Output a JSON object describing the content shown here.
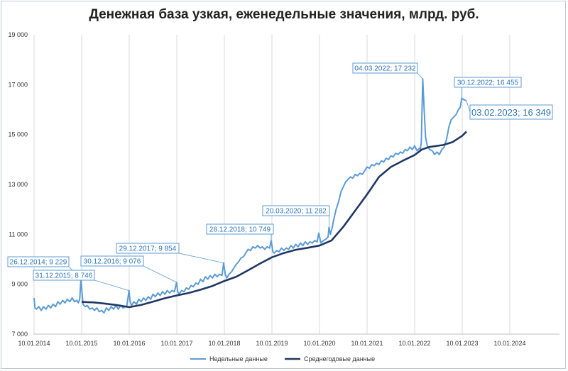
{
  "chart_data": {
    "type": "line",
    "title": "Денежная база узкая, еженедельные значения, млрд. руб.",
    "xlabel": "",
    "ylabel": "",
    "xlim": [
      2014.0,
      2025.0
    ],
    "ylim": [
      7000,
      19000
    ],
    "y_ticks": [
      "7 000",
      "9 000",
      "11 000",
      "13 000",
      "15 000",
      "17 000",
      "19 000"
    ],
    "y_tick_values": [
      7000,
      9000,
      11000,
      13000,
      15000,
      17000,
      19000
    ],
    "x_ticks": [
      "10.01.2014",
      "10.01.2015",
      "10.01.2016",
      "10.01.2017",
      "10.01.2018",
      "10.01.2019",
      "10.01.2020",
      "10.01.2021",
      "10.01.2022",
      "10.01.2023",
      "10.01.2024"
    ],
    "x_tick_values": [
      2014.0,
      2015.0,
      2016.0,
      2017.0,
      2018.0,
      2019.0,
      2020.0,
      2021.0,
      2022.0,
      2023.0,
      2024.0
    ],
    "grid": "vertical",
    "legend": "bottom",
    "series": [
      {
        "name": "Недельные данные",
        "color": "#5b9bd5",
        "points": [
          [
            2014.0,
            8450
          ],
          [
            2014.02,
            8050
          ],
          [
            2014.05,
            8000
          ],
          [
            2014.1,
            8100
          ],
          [
            2014.15,
            7950
          ],
          [
            2014.2,
            8100
          ],
          [
            2014.25,
            8000
          ],
          [
            2014.3,
            8150
          ],
          [
            2014.35,
            8050
          ],
          [
            2014.4,
            8200
          ],
          [
            2014.45,
            8100
          ],
          [
            2014.5,
            8300
          ],
          [
            2014.55,
            8200
          ],
          [
            2014.6,
            8350
          ],
          [
            2014.65,
            8250
          ],
          [
            2014.7,
            8400
          ],
          [
            2014.75,
            8300
          ],
          [
            2014.8,
            8450
          ],
          [
            2014.85,
            8300
          ],
          [
            2014.9,
            8350
          ],
          [
            2014.93,
            8250
          ],
          [
            2014.96,
            8400
          ],
          [
            2014.985,
            9229
          ],
          [
            2015.01,
            8600
          ],
          [
            2015.03,
            8200
          ],
          [
            2015.07,
            8100
          ],
          [
            2015.12,
            8150
          ],
          [
            2015.17,
            8000
          ],
          [
            2015.22,
            8050
          ],
          [
            2015.27,
            7950
          ],
          [
            2015.32,
            8050
          ],
          [
            2015.37,
            7900
          ],
          [
            2015.42,
            7950
          ],
          [
            2015.47,
            7850
          ],
          [
            2015.52,
            8050
          ],
          [
            2015.57,
            7950
          ],
          [
            2015.62,
            8100
          ],
          [
            2015.67,
            8000
          ],
          [
            2015.72,
            8150
          ],
          [
            2015.77,
            8000
          ],
          [
            2015.82,
            8150
          ],
          [
            2015.87,
            8050
          ],
          [
            2015.92,
            8100
          ],
          [
            2015.95,
            8150
          ],
          [
            2015.995,
            8746
          ],
          [
            2016.02,
            8300
          ],
          [
            2016.05,
            8150
          ],
          [
            2016.1,
            8300
          ],
          [
            2016.15,
            8200
          ],
          [
            2016.2,
            8400
          ],
          [
            2016.25,
            8300
          ],
          [
            2016.3,
            8450
          ],
          [
            2016.35,
            8350
          ],
          [
            2016.4,
            8500
          ],
          [
            2016.45,
            8400
          ],
          [
            2016.5,
            8600
          ],
          [
            2016.55,
            8500
          ],
          [
            2016.6,
            8650
          ],
          [
            2016.65,
            8550
          ],
          [
            2016.7,
            8700
          ],
          [
            2016.75,
            8600
          ],
          [
            2016.8,
            8750
          ],
          [
            2016.85,
            8650
          ],
          [
            2016.9,
            8750
          ],
          [
            2016.95,
            8700
          ],
          [
            2016.995,
            9076
          ],
          [
            2017.02,
            8700
          ],
          [
            2017.05,
            8600
          ],
          [
            2017.1,
            8750
          ],
          [
            2017.15,
            8700
          ],
          [
            2017.2,
            8850
          ],
          [
            2017.25,
            8800
          ],
          [
            2017.3,
            8950
          ],
          [
            2017.35,
            8900
          ],
          [
            2017.4,
            9050
          ],
          [
            2017.45,
            9000
          ],
          [
            2017.5,
            9200
          ],
          [
            2017.55,
            9100
          ],
          [
            2017.6,
            9300
          ],
          [
            2017.65,
            9200
          ],
          [
            2017.7,
            9350
          ],
          [
            2017.75,
            9250
          ],
          [
            2017.8,
            9400
          ],
          [
            2017.85,
            9300
          ],
          [
            2017.9,
            9400
          ],
          [
            2017.95,
            9350
          ],
          [
            2017.985,
            9854
          ],
          [
            2018.02,
            9400
          ],
          [
            2018.05,
            9250
          ],
          [
            2018.1,
            9400
          ],
          [
            2018.15,
            9500
          ],
          [
            2018.2,
            9650
          ],
          [
            2018.25,
            9800
          ],
          [
            2018.3,
            9900
          ],
          [
            2018.35,
            10050
          ],
          [
            2018.4,
            10100
          ],
          [
            2018.45,
            10250
          ],
          [
            2018.5,
            10400
          ],
          [
            2018.55,
            10350
          ],
          [
            2018.6,
            10500
          ],
          [
            2018.65,
            10450
          ],
          [
            2018.7,
            10550
          ],
          [
            2018.75,
            10450
          ],
          [
            2018.8,
            10500
          ],
          [
            2018.85,
            10400
          ],
          [
            2018.9,
            10500
          ],
          [
            2018.95,
            10450
          ],
          [
            2018.985,
            10749
          ],
          [
            2019.02,
            10300
          ],
          [
            2019.05,
            10250
          ],
          [
            2019.1,
            10350
          ],
          [
            2019.15,
            10300
          ],
          [
            2019.2,
            10450
          ],
          [
            2019.25,
            10350
          ],
          [
            2019.3,
            10450
          ],
          [
            2019.35,
            10400
          ],
          [
            2019.4,
            10550
          ],
          [
            2019.45,
            10450
          ],
          [
            2019.5,
            10600
          ],
          [
            2019.55,
            10500
          ],
          [
            2019.6,
            10650
          ],
          [
            2019.65,
            10550
          ],
          [
            2019.7,
            10700
          ],
          [
            2019.75,
            10600
          ],
          [
            2019.8,
            10700
          ],
          [
            2019.85,
            10650
          ],
          [
            2019.9,
            10750
          ],
          [
            2019.95,
            10700
          ],
          [
            2019.985,
            11050
          ],
          [
            2020.03,
            10650
          ],
          [
            2020.08,
            10750
          ],
          [
            2020.13,
            10800
          ],
          [
            2020.18,
            10900
          ],
          [
            2020.2,
            11282
          ],
          [
            2020.23,
            11000
          ],
          [
            2020.27,
            11300
          ],
          [
            2020.3,
            11600
          ],
          [
            2020.35,
            12000
          ],
          [
            2020.4,
            12300
          ],
          [
            2020.45,
            12700
          ],
          [
            2020.5,
            12900
          ],
          [
            2020.55,
            13100
          ],
          [
            2020.6,
            13200
          ],
          [
            2020.65,
            13300
          ],
          [
            2020.7,
            13250
          ],
          [
            2020.75,
            13400
          ],
          [
            2020.8,
            13350
          ],
          [
            2020.85,
            13450
          ],
          [
            2020.9,
            13400
          ],
          [
            2020.95,
            13550
          ],
          [
            2021.0,
            13700
          ],
          [
            2021.05,
            13650
          ],
          [
            2021.1,
            13800
          ],
          [
            2021.15,
            13750
          ],
          [
            2021.2,
            13850
          ],
          [
            2021.25,
            13800
          ],
          [
            2021.3,
            13950
          ],
          [
            2021.35,
            13900
          ],
          [
            2021.4,
            14050
          ],
          [
            2021.45,
            14000
          ],
          [
            2021.5,
            14150
          ],
          [
            2021.55,
            14100
          ],
          [
            2021.6,
            14250
          ],
          [
            2021.65,
            14200
          ],
          [
            2021.7,
            14300
          ],
          [
            2021.75,
            14250
          ],
          [
            2021.8,
            14400
          ],
          [
            2021.85,
            14350
          ],
          [
            2021.9,
            14500
          ],
          [
            2021.95,
            14400
          ],
          [
            2022.0,
            14550
          ],
          [
            2022.05,
            14350
          ],
          [
            2022.1,
            14450
          ],
          [
            2022.12,
            14400
          ],
          [
            2022.14,
            14700
          ],
          [
            2022.17,
            17232
          ],
          [
            2022.2,
            16000
          ],
          [
            2022.23,
            14900
          ],
          [
            2022.27,
            14500
          ],
          [
            2022.32,
            14400
          ],
          [
            2022.37,
            14350
          ],
          [
            2022.42,
            14200
          ],
          [
            2022.47,
            14300
          ],
          [
            2022.52,
            14200
          ],
          [
            2022.57,
            14400
          ],
          [
            2022.62,
            14500
          ],
          [
            2022.67,
            14800
          ],
          [
            2022.72,
            15300
          ],
          [
            2022.77,
            15600
          ],
          [
            2022.82,
            15700
          ],
          [
            2022.87,
            15800
          ],
          [
            2022.92,
            16000
          ],
          [
            2022.96,
            16100
          ],
          [
            2022.99,
            16455
          ],
          [
            2023.03,
            16400
          ],
          [
            2023.09,
            16349
          ]
        ]
      },
      {
        "name": "Среднегодовые данные",
        "color": "#1f3864",
        "points": [
          [
            2015.0,
            8290
          ],
          [
            2015.25,
            8270
          ],
          [
            2015.5,
            8220
          ],
          [
            2015.75,
            8160
          ],
          [
            2016.0,
            8080
          ],
          [
            2016.25,
            8170
          ],
          [
            2016.5,
            8300
          ],
          [
            2016.75,
            8440
          ],
          [
            2017.0,
            8550
          ],
          [
            2017.25,
            8650
          ],
          [
            2017.5,
            8780
          ],
          [
            2017.75,
            8930
          ],
          [
            2018.0,
            9130
          ],
          [
            2018.25,
            9300
          ],
          [
            2018.5,
            9560
          ],
          [
            2018.75,
            9830
          ],
          [
            2019.0,
            10080
          ],
          [
            2019.25,
            10250
          ],
          [
            2019.5,
            10380
          ],
          [
            2019.75,
            10460
          ],
          [
            2020.0,
            10550
          ],
          [
            2020.25,
            10750
          ],
          [
            2020.5,
            11300
          ],
          [
            2020.75,
            11950
          ],
          [
            2021.0,
            12600
          ],
          [
            2021.25,
            13300
          ],
          [
            2021.5,
            13700
          ],
          [
            2021.75,
            13950
          ],
          [
            2022.0,
            14180
          ],
          [
            2022.15,
            14400
          ],
          [
            2022.3,
            14500
          ],
          [
            2022.6,
            14580
          ],
          [
            2022.8,
            14700
          ],
          [
            2023.0,
            14950
          ],
          [
            2023.09,
            15120
          ]
        ]
      }
    ],
    "annotations": [
      {
        "text": "26.12.2014; 9 229",
        "x": 2014.985,
        "y": 9229,
        "size": "normal"
      },
      {
        "text": "31.12.2015; 8 746",
        "x": 2015.995,
        "y": 8746,
        "size": "normal"
      },
      {
        "text": "30.12.2016; 9 076",
        "x": 2016.995,
        "y": 9076,
        "size": "normal"
      },
      {
        "text": "29.12.2017; 9 854",
        "x": 2017.985,
        "y": 9854,
        "size": "normal"
      },
      {
        "text": "28.12.2018; 10 749",
        "x": 2018.985,
        "y": 10749,
        "size": "normal"
      },
      {
        "text": "20.03.2020; 11 282",
        "x": 2020.2,
        "y": 11282,
        "size": "normal"
      },
      {
        "text": "04.03.2022; 17 232",
        "x": 2022.17,
        "y": 17232,
        "size": "normal"
      },
      {
        "text": "30.12.2022; 16 455",
        "x": 2022.99,
        "y": 16455,
        "size": "normal"
      },
      {
        "text": "03.02.2023; 16 349",
        "x": 2023.09,
        "y": 16349,
        "size": "big"
      }
    ]
  }
}
